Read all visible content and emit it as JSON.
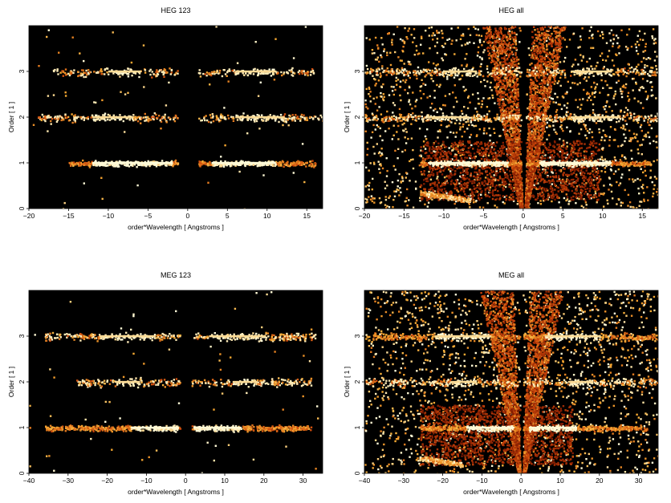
{
  "colors": {
    "background": "#000000",
    "low": "#7a1a00",
    "mid": "#e0701a",
    "high": "#fff6c8"
  },
  "chart_data": [
    {
      "type": "heatmap",
      "title": "HEG 123",
      "xlabel": "order*Wavelength [ Angstroms ]",
      "ylabel": "Order [ 1 ]",
      "xlim": [
        -20,
        17
      ],
      "ylim": [
        0,
        4
      ],
      "xticks": [
        -20,
        -15,
        -10,
        -5,
        0,
        5,
        10,
        15
      ],
      "yticks": [
        0,
        1,
        2,
        3
      ],
      "gap": [
        -1.3,
        1.3
      ],
      "orders": [
        {
          "order": 1,
          "range": [
            -15,
            16
          ],
          "core": [
            -12,
            -2,
            3,
            11
          ],
          "intensity": 1.0
        },
        {
          "order": 2,
          "range": [
            -19,
            17
          ],
          "core": [
            -12,
            -7,
            6,
            12
          ],
          "intensity": 0.35
        },
        {
          "order": 3,
          "range": [
            -17,
            16
          ],
          "core": [
            -10,
            -6,
            6,
            11
          ],
          "intensity": 0.25
        }
      ],
      "wedges": false
    },
    {
      "type": "heatmap",
      "title": "HEG all",
      "xlabel": "order*Wavelength [ Angstroms ]",
      "ylabel": "Order [ 1 ]",
      "xlim": [
        -20,
        17
      ],
      "ylim": [
        0,
        4
      ],
      "xticks": [
        -20,
        -15,
        -10,
        -5,
        0,
        5,
        10,
        15
      ],
      "yticks": [
        0,
        1,
        2,
        3
      ],
      "gap": [
        -0.3,
        0.3
      ],
      "orders": [
        {
          "order": 1,
          "range": [
            -13,
            16
          ],
          "core": [
            -12,
            -2,
            2,
            11
          ],
          "intensity": 1.0
        },
        {
          "order": 2,
          "range": [
            -20,
            17
          ],
          "core": [
            -12,
            -7,
            6,
            12
          ],
          "intensity": 0.4
        },
        {
          "order": 3,
          "range": [
            -20,
            17
          ],
          "core": [
            -10,
            -6,
            6,
            11
          ],
          "intensity": 0.3
        }
      ],
      "wedges": true,
      "box": [
        -13,
        9.5,
        0.2,
        1.5
      ]
    },
    {
      "type": "heatmap",
      "title": "MEG 123",
      "xlabel": "order*Wavelength [ Angstroms ]",
      "ylabel": "Order [ 1 ]",
      "xlim": [
        -40,
        35
      ],
      "ylim": [
        0,
        4
      ],
      "xticks": [
        -40,
        -30,
        -20,
        -10,
        0,
        10,
        20,
        30
      ],
      "yticks": [
        0,
        1,
        2,
        3
      ],
      "gap": [
        -1.5,
        1.5
      ],
      "orders": [
        {
          "order": 1,
          "range": [
            -36,
            32
          ],
          "core": [
            -14,
            -2,
            2,
            14
          ],
          "intensity": 1.0
        },
        {
          "order": 2,
          "range": [
            -28,
            32
          ],
          "core": [
            -18,
            -12,
            12,
            18
          ],
          "intensity": 0.35
        },
        {
          "order": 3,
          "range": [
            -36,
            33
          ],
          "core": [
            -22,
            -8,
            6,
            20
          ],
          "intensity": 0.45
        }
      ],
      "wedges": false
    },
    {
      "type": "heatmap",
      "title": "MEG all",
      "xlabel": "order*Wavelength [ Angstroms ]",
      "ylabel": "Order [ 1 ]",
      "xlim": [
        -40,
        35
      ],
      "ylim": [
        0,
        4
      ],
      "xticks": [
        -40,
        -30,
        -20,
        -10,
        0,
        10,
        20,
        30
      ],
      "yticks": [
        0,
        1,
        2,
        3
      ],
      "gap": [
        -0.4,
        0.4
      ],
      "orders": [
        {
          "order": 1,
          "range": [
            -26,
            32
          ],
          "core": [
            -14,
            -2,
            2,
            14
          ],
          "intensity": 1.0
        },
        {
          "order": 2,
          "range": [
            -40,
            35
          ],
          "core": [
            -18,
            -12,
            12,
            18
          ],
          "intensity": 0.4
        },
        {
          "order": 3,
          "range": [
            -40,
            35
          ],
          "core": [
            -22,
            -8,
            6,
            20
          ],
          "intensity": 0.5
        }
      ],
      "wedges": true,
      "box": [
        -26,
        13,
        0.2,
        1.5
      ]
    }
  ]
}
